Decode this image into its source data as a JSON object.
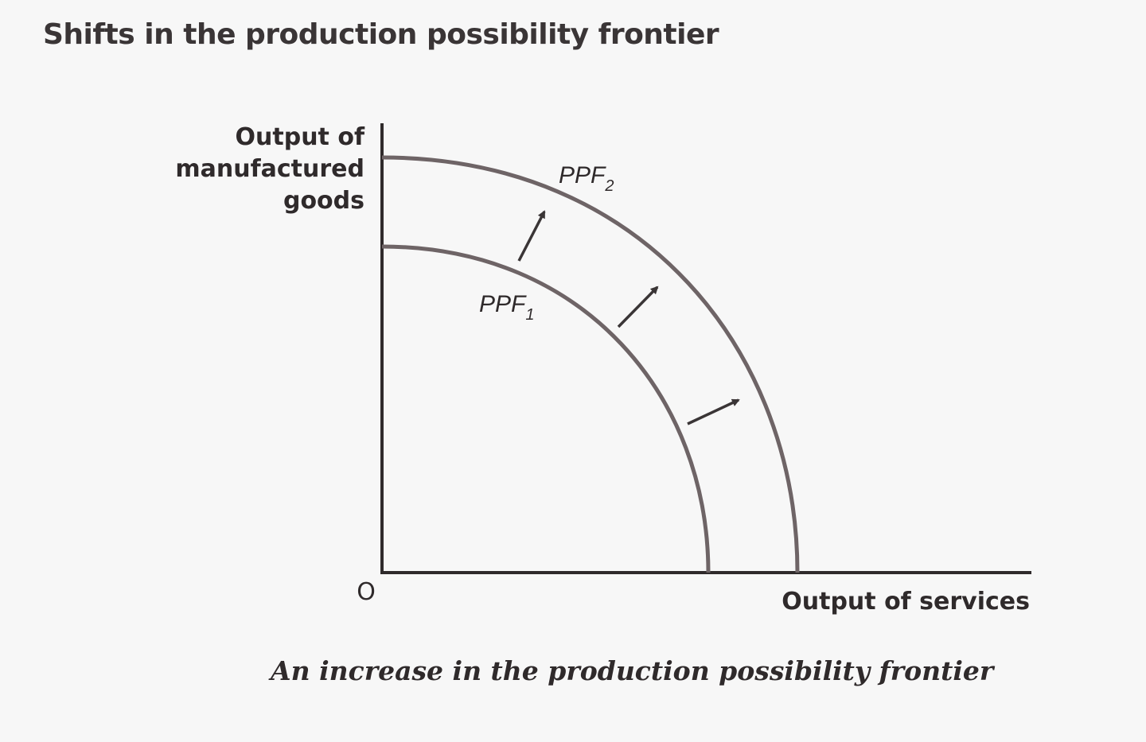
{
  "figure": {
    "heading": "Shifts in the production possibility frontier",
    "caption": "An increase in the production possibility frontier"
  },
  "axes": {
    "y_label_lines": [
      "Output of",
      "manufactured",
      "goods"
    ],
    "x_label": "Output of services",
    "origin_label": "O"
  },
  "curves": [
    {
      "label": "PPF",
      "subscript": "1"
    },
    {
      "label": "PPF",
      "subscript": "2"
    }
  ],
  "shift_arrows": 3,
  "colors": {
    "background": "#f7f7f7",
    "curve": "#6e6466",
    "axis": "#2f2a2b",
    "text": "#2f2a2b"
  }
}
